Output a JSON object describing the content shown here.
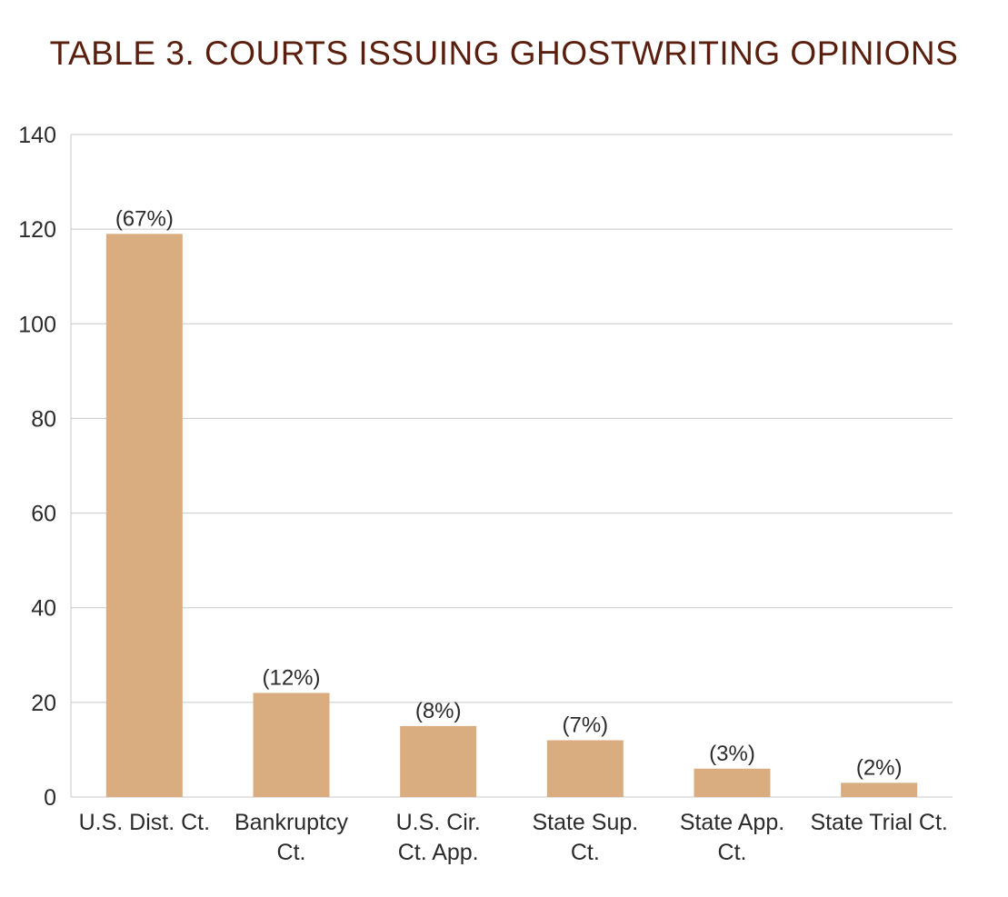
{
  "chart_data": {
    "type": "bar",
    "title": "TABLE 3. COURTS ISSUING GHOSTWRITING OPINIONS",
    "xlabel": "",
    "ylabel": "",
    "categories": [
      [
        "U.S. Dist. Ct."
      ],
      [
        "Bankruptcy",
        "Ct."
      ],
      [
        "U.S. Cir.",
        "Ct. App."
      ],
      [
        "State Sup.",
        "Ct."
      ],
      [
        "State App.",
        "Ct."
      ],
      [
        "State Trial Ct."
      ]
    ],
    "values": [
      119,
      22,
      15,
      12,
      6,
      3
    ],
    "data_labels": [
      "(67%)",
      "(12%)",
      "(8%)",
      "(7%)",
      "(3%)",
      "(2%)"
    ],
    "ylim": [
      0,
      140
    ],
    "yticks": [
      0,
      20,
      40,
      60,
      80,
      100,
      120,
      140
    ],
    "grid": true,
    "legend": "none",
    "colors": {
      "bar": "#d9ad80",
      "grid": "#c8c8c8",
      "title": "#5a1e0e",
      "text": "#2b2b2b"
    }
  }
}
